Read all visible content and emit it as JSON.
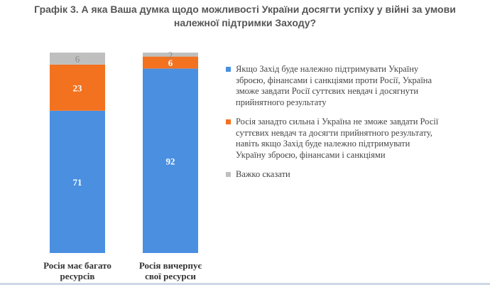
{
  "title_lines": [
    "Графік 3. А яка Ваша думка щодо можливості України досягти успіху у війні за умови",
    "належної підтримки Заходу?"
  ],
  "chart_data": {
    "type": "bar",
    "stacked": true,
    "percent": true,
    "categories": [
      [
        "Росія має багато",
        "ресурсів"
      ],
      [
        "Росія вичерпує",
        "свої ресурси"
      ]
    ],
    "series": [
      {
        "name": "Якщо Захід буде належно підтримувати Україну зброєю, фінансами і санкціями проти Росії, Україна зможе завдати Росії суттєвих невдач і досягнути прийнятного результату",
        "color": "#4a8fe0",
        "values": [
          71,
          92
        ]
      },
      {
        "name": "Росія занадто сильна і Україна не зможе завдати Росії суттєвих невдач та досягти прийнятного результату, навіть якщо Захід буде належно підтримувати Україну зброєю, фінансами і санкціями",
        "color": "#f27220",
        "values": [
          23,
          6
        ]
      },
      {
        "name": "Важко сказати",
        "color": "#bfbfbf",
        "values": [
          6,
          2
        ]
      }
    ],
    "legend_position": "right",
    "grid": false
  }
}
